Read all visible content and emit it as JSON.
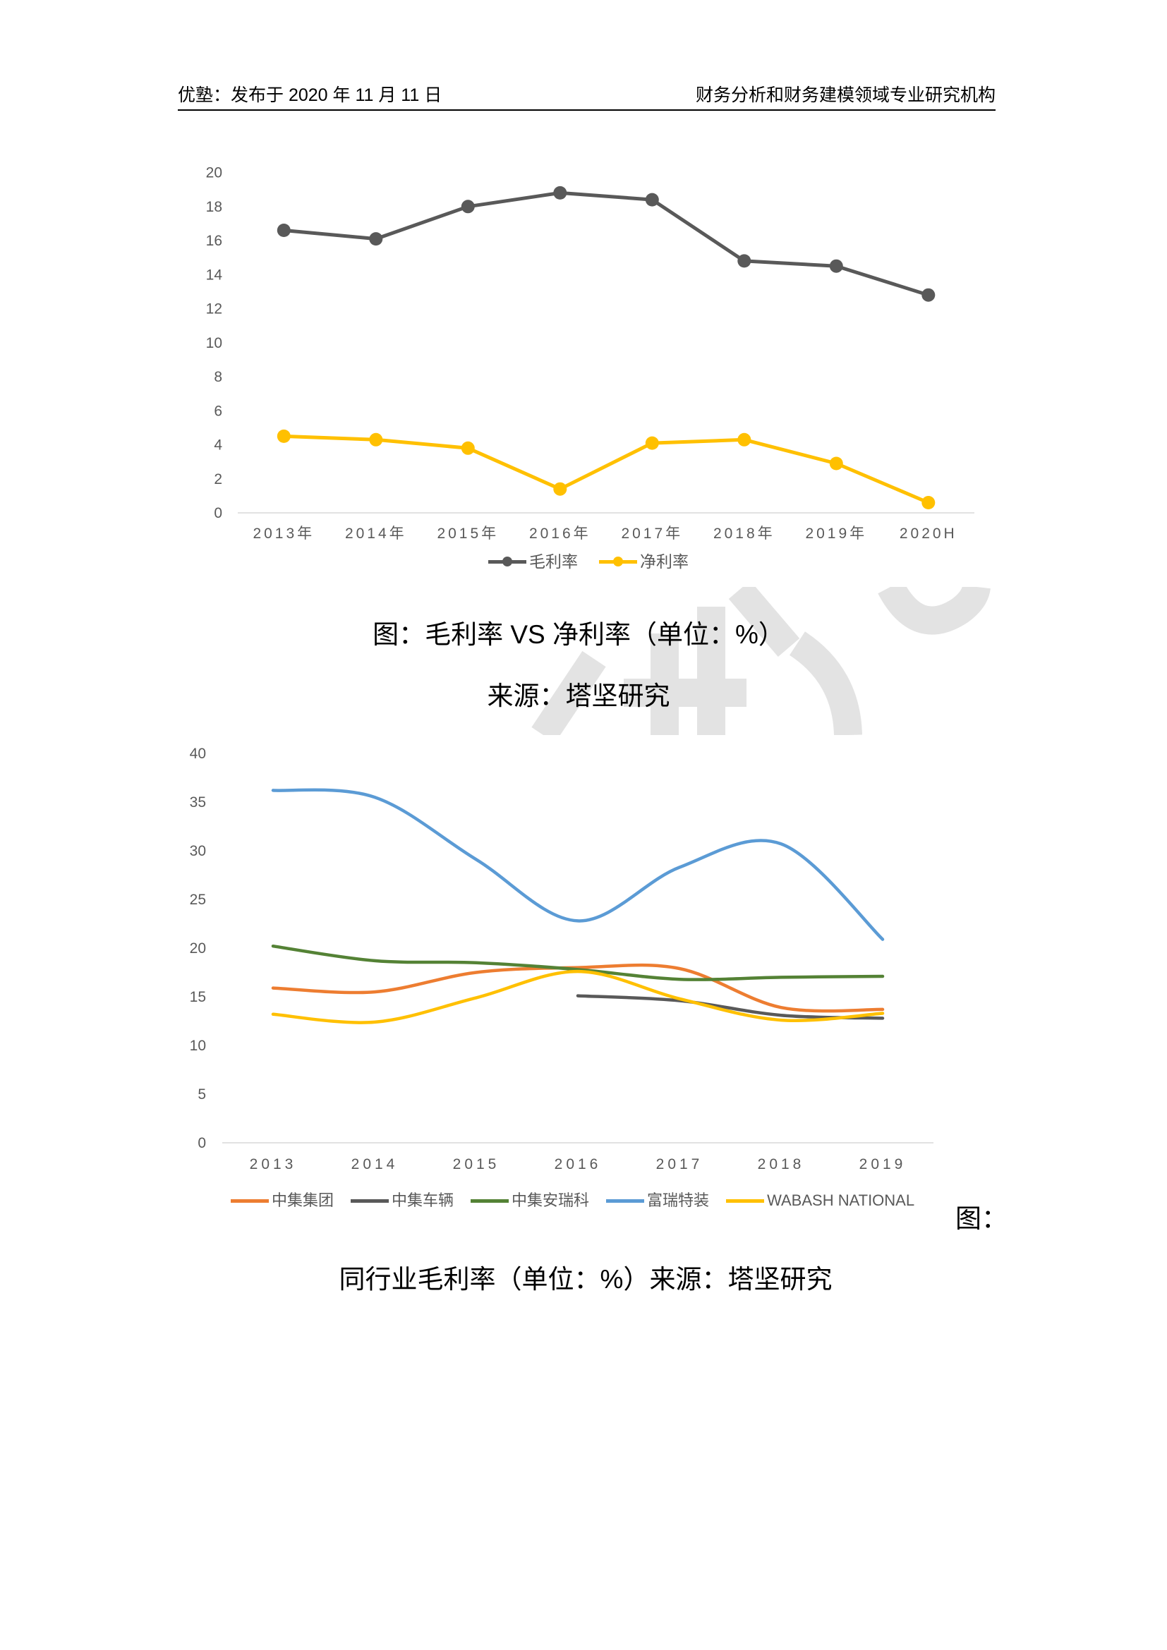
{
  "header": {
    "left": "优塾：发布于 2020 年 11 月 11 日",
    "right": "财务分析和财务建模领域专业研究机构"
  },
  "figure1": {
    "caption": "图：毛利率 VS 净利率（单位：%）",
    "source": "来源：塔坚研究"
  },
  "figure2": {
    "label": "图：",
    "caption": "同行业毛利率（单位：%）来源：塔坚研究"
  },
  "watermark_color": "#e3e3e3",
  "chart_data": [
    {
      "type": "line",
      "categories": [
        "2013年",
        "2014年",
        "2015年",
        "2016年",
        "2017年",
        "2018年",
        "2019年",
        "2020H"
      ],
      "series": [
        {
          "name": "毛利率",
          "color": "#595959",
          "values": [
            16.6,
            16.1,
            18.0,
            18.8,
            18.4,
            14.8,
            14.5,
            12.8
          ]
        },
        {
          "name": "净利率",
          "color": "#FFC000",
          "values": [
            4.5,
            4.3,
            3.8,
            1.4,
            4.1,
            4.3,
            2.9,
            0.6
          ]
        }
      ],
      "ylim": [
        0,
        20
      ],
      "yticks": [
        0,
        2,
        4,
        6,
        8,
        10,
        12,
        14,
        16,
        18,
        20
      ],
      "markers": true,
      "smooth": false,
      "grid": false,
      "legend": "bottom"
    },
    {
      "type": "line",
      "categories": [
        "2013",
        "2014",
        "2015",
        "2016",
        "2017",
        "2018",
        "2019"
      ],
      "series": [
        {
          "name": "中集集团",
          "color": "#ED7D31",
          "values": [
            15.9,
            15.5,
            17.5,
            18.0,
            17.9,
            13.9,
            13.7
          ]
        },
        {
          "name": "中集车辆",
          "color": "#595959",
          "values": [
            null,
            null,
            null,
            15.1,
            14.6,
            13.1,
            12.8
          ]
        },
        {
          "name": "中集安瑞科",
          "color": "#548235",
          "values": [
            20.2,
            18.7,
            18.5,
            17.8,
            16.8,
            17.0,
            17.1
          ]
        },
        {
          "name": "富瑞特装",
          "color": "#5B9BD5",
          "values": [
            36.2,
            35.5,
            29.1,
            22.8,
            28.3,
            30.7,
            20.9
          ]
        },
        {
          "name": "WABASH NATIONAL",
          "color": "#FFC000",
          "values": [
            13.2,
            12.4,
            14.9,
            17.6,
            14.8,
            12.6,
            13.3
          ]
        }
      ],
      "ylim": [
        0,
        40
      ],
      "yticks": [
        0,
        5,
        10,
        15,
        20,
        25,
        30,
        35,
        40
      ],
      "markers": false,
      "smooth": true,
      "grid": false,
      "legend": "bottom"
    }
  ]
}
